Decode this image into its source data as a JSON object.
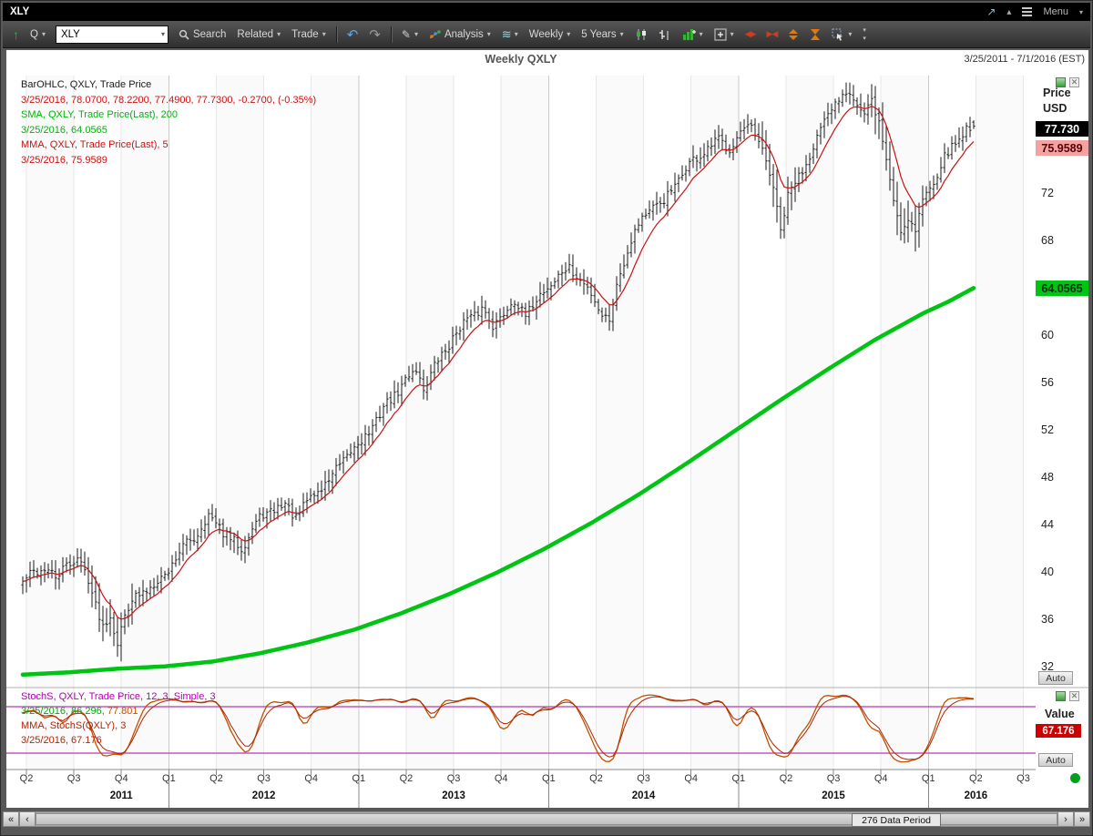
{
  "window": {
    "title": "XLY",
    "menu_label": "Menu"
  },
  "toolbar": {
    "q_label": "Q",
    "symbol_input": "XLY",
    "search_label": "Search",
    "related_label": "Related",
    "trade_label": "Trade",
    "analysis_label": "Analysis",
    "period_label": "Weekly",
    "range_label": "5 Years"
  },
  "chart": {
    "title": "Weekly QXLY",
    "date_range": "3/25/2011 - 7/1/2016 (EST)",
    "legend_main": [
      "BarOHLC, QXLY, Trade Price",
      "3/25/2016, 78.0700, 78.2200, 77.4900, 77.7300, -0.2700, (-0.35%)",
      "SMA, QXLY, Trade Price(Last), 200",
      "3/25/2016, 64.0565",
      "MMA, QXLY, Trade Price(Last), 5",
      "3/25/2016, 75.9589"
    ],
    "axis": {
      "price_label": "Price",
      "currency_label": "USD",
      "last_price_box": "77.730",
      "mma_box": "75.9589",
      "sma_box": "64.0565",
      "ticks": [
        72,
        68,
        60,
        56,
        52,
        48,
        44,
        40,
        36,
        32
      ],
      "auto_label": "Auto"
    },
    "stoch": {
      "legend_line1": "StochS, QXLY, Trade Price, 12, 3, Simple, 3",
      "legend_line2_green": "3/25/2016, 86.296,",
      "legend_line2_orange": " 77.801",
      "legend_line3": "MMA, StochS(QXLY), 3",
      "legend_line4": "3/25/2016, 67.176",
      "value_label": "Value",
      "value_box": "67.176",
      "auto_label": "Auto"
    },
    "x_axis": {
      "quarter_labels": [
        "Q2",
        "Q3",
        "Q4",
        "Q1",
        "Q2",
        "Q3",
        "Q4",
        "Q1",
        "Q2",
        "Q3",
        "Q4",
        "Q1",
        "Q2",
        "Q3",
        "Q4",
        "Q1",
        "Q2",
        "Q3",
        "Q4",
        "Q1",
        "Q2",
        "Q3"
      ],
      "year_labels": [
        "2011",
        "2012",
        "2013",
        "2014",
        "2015",
        "2016"
      ]
    }
  },
  "scrollbar": {
    "first_label": "«",
    "prev_label": "‹",
    "next_label": "›",
    "last_label": "»",
    "period_label": "276 Data Period"
  },
  "colors": {
    "bars": "#1a1a1a",
    "mma": "#cc1111",
    "sma": "#00c414",
    "stoch": "#c35000",
    "stoch_mma": "#b02500",
    "bands": "#c05ac0",
    "grid": "#e7e7e7",
    "grid_year": "#c9c9c9"
  },
  "chart_data": {
    "type": "bar",
    "subtype": "weekly OHLC price bars with SMA-200 and MMA-5 overlays plus slow stochastic subpanel",
    "symbol": "QXLY",
    "interval": "Weekly",
    "x_range": [
      "3/25/2011",
      "7/1/2016"
    ],
    "data_periods": 276,
    "last_bar": {
      "date": "3/25/2016",
      "open": 78.07,
      "high": 78.22,
      "low": 77.49,
      "close": 77.73,
      "change": -0.27,
      "change_pct": "-0.35%"
    },
    "price_axis": {
      "min": 30,
      "max": 82,
      "ticks": [
        72,
        68,
        64,
        60,
        56,
        52,
        48,
        44,
        40,
        36,
        32
      ]
    },
    "series": [
      {
        "name": "Trade Price weekly close keypoints (week index since 3/25/2011, price USD)",
        "style": "ohlc-bars",
        "keypoints": [
          [
            0,
            39.2
          ],
          [
            3,
            40.0
          ],
          [
            6,
            40.5
          ],
          [
            9,
            39.4
          ],
          [
            12,
            40.8
          ],
          [
            15,
            41.1
          ],
          [
            18,
            39.6
          ],
          [
            20,
            37.4
          ],
          [
            22,
            35.4
          ],
          [
            24,
            36.3
          ],
          [
            26,
            34.3
          ],
          [
            28,
            36.4
          ],
          [
            30,
            37.7
          ],
          [
            33,
            38.4
          ],
          [
            36,
            39.0
          ],
          [
            39,
            39.9
          ],
          [
            42,
            41.3
          ],
          [
            45,
            42.5
          ],
          [
            48,
            43.4
          ],
          [
            51,
            44.7
          ],
          [
            54,
            43.9
          ],
          [
            57,
            42.7
          ],
          [
            60,
            42.2
          ],
          [
            63,
            43.7
          ],
          [
            66,
            44.9
          ],
          [
            69,
            45.4
          ],
          [
            72,
            45.7
          ],
          [
            75,
            44.7
          ],
          [
            78,
            46.0
          ],
          [
            81,
            46.9
          ],
          [
            84,
            47.9
          ],
          [
            87,
            49.0
          ],
          [
            90,
            50.3
          ],
          [
            93,
            51.1
          ],
          [
            96,
            52.4
          ],
          [
            99,
            53.9
          ],
          [
            102,
            55.0
          ],
          [
            105,
            56.3
          ],
          [
            108,
            57.2
          ],
          [
            110,
            55.7
          ],
          [
            113,
            57.3
          ],
          [
            116,
            58.9
          ],
          [
            119,
            60.3
          ],
          [
            122,
            61.4
          ],
          [
            126,
            62.3
          ],
          [
            129,
            60.9
          ],
          [
            132,
            62.0
          ],
          [
            135,
            62.9
          ],
          [
            138,
            61.8
          ],
          [
            141,
            63.0
          ],
          [
            144,
            64.2
          ],
          [
            147,
            65.0
          ],
          [
            150,
            65.7
          ],
          [
            153,
            64.7
          ],
          [
            156,
            63.5
          ],
          [
            159,
            62.0
          ],
          [
            161,
            61.4
          ],
          [
            164,
            65.4
          ],
          [
            167,
            68.3
          ],
          [
            170,
            70.0
          ],
          [
            173,
            70.9
          ],
          [
            176,
            71.3
          ],
          [
            179,
            72.7
          ],
          [
            182,
            74.2
          ],
          [
            185,
            75.0
          ],
          [
            188,
            75.7
          ],
          [
            191,
            76.5
          ],
          [
            194,
            76.0
          ],
          [
            197,
            77.0
          ],
          [
            200,
            77.7
          ],
          [
            203,
            75.5
          ],
          [
            206,
            72.6
          ],
          [
            208,
            69.0
          ],
          [
            210,
            71.7
          ],
          [
            213,
            73.5
          ],
          [
            216,
            75.4
          ],
          [
            219,
            77.3
          ],
          [
            222,
            79.3
          ],
          [
            225,
            80.4
          ],
          [
            227,
            80.8
          ],
          [
            229,
            79.7
          ],
          [
            231,
            78.5
          ],
          [
            233,
            79.7
          ],
          [
            235,
            78.2
          ],
          [
            237,
            75.0
          ],
          [
            239,
            71.3
          ],
          [
            241,
            68.9
          ],
          [
            243,
            70.2
          ],
          [
            245,
            68.9
          ],
          [
            247,
            71.4
          ],
          [
            249,
            72.7
          ],
          [
            252,
            74.4
          ],
          [
            255,
            76.0
          ],
          [
            258,
            77.2
          ],
          [
            261,
            77.73
          ]
        ]
      },
      {
        "name": "SMA 200-week",
        "style": "line",
        "last": 64.0565,
        "keypoints": [
          [
            0,
            31.4
          ],
          [
            13,
            31.6
          ],
          [
            26,
            31.9
          ],
          [
            39,
            32.1
          ],
          [
            52,
            32.5
          ],
          [
            65,
            33.2
          ],
          [
            78,
            34.1
          ],
          [
            91,
            35.2
          ],
          [
            104,
            36.6
          ],
          [
            117,
            38.2
          ],
          [
            130,
            40.0
          ],
          [
            143,
            42.0
          ],
          [
            156,
            44.2
          ],
          [
            169,
            46.6
          ],
          [
            182,
            49.2
          ],
          [
            195,
            51.9
          ],
          [
            208,
            54.6
          ],
          [
            221,
            57.2
          ],
          [
            234,
            59.7
          ],
          [
            247,
            61.9
          ],
          [
            254,
            62.9
          ],
          [
            261,
            64.0565
          ]
        ]
      },
      {
        "name": "MMA 5-week",
        "style": "line",
        "last": 75.9589,
        "derived_from": "modified moving average of weekly close, period 5"
      }
    ],
    "indicator": {
      "name": "StochS 12, 3, Simple, 3 with MMA 3",
      "panel": "lower",
      "bands": [
        80,
        20
      ],
      "value_axis": [
        0,
        100
      ],
      "last_values": {
        "stoch_k": 86.296,
        "stoch_d": 77.801,
        "mma3": 67.176
      }
    }
  }
}
